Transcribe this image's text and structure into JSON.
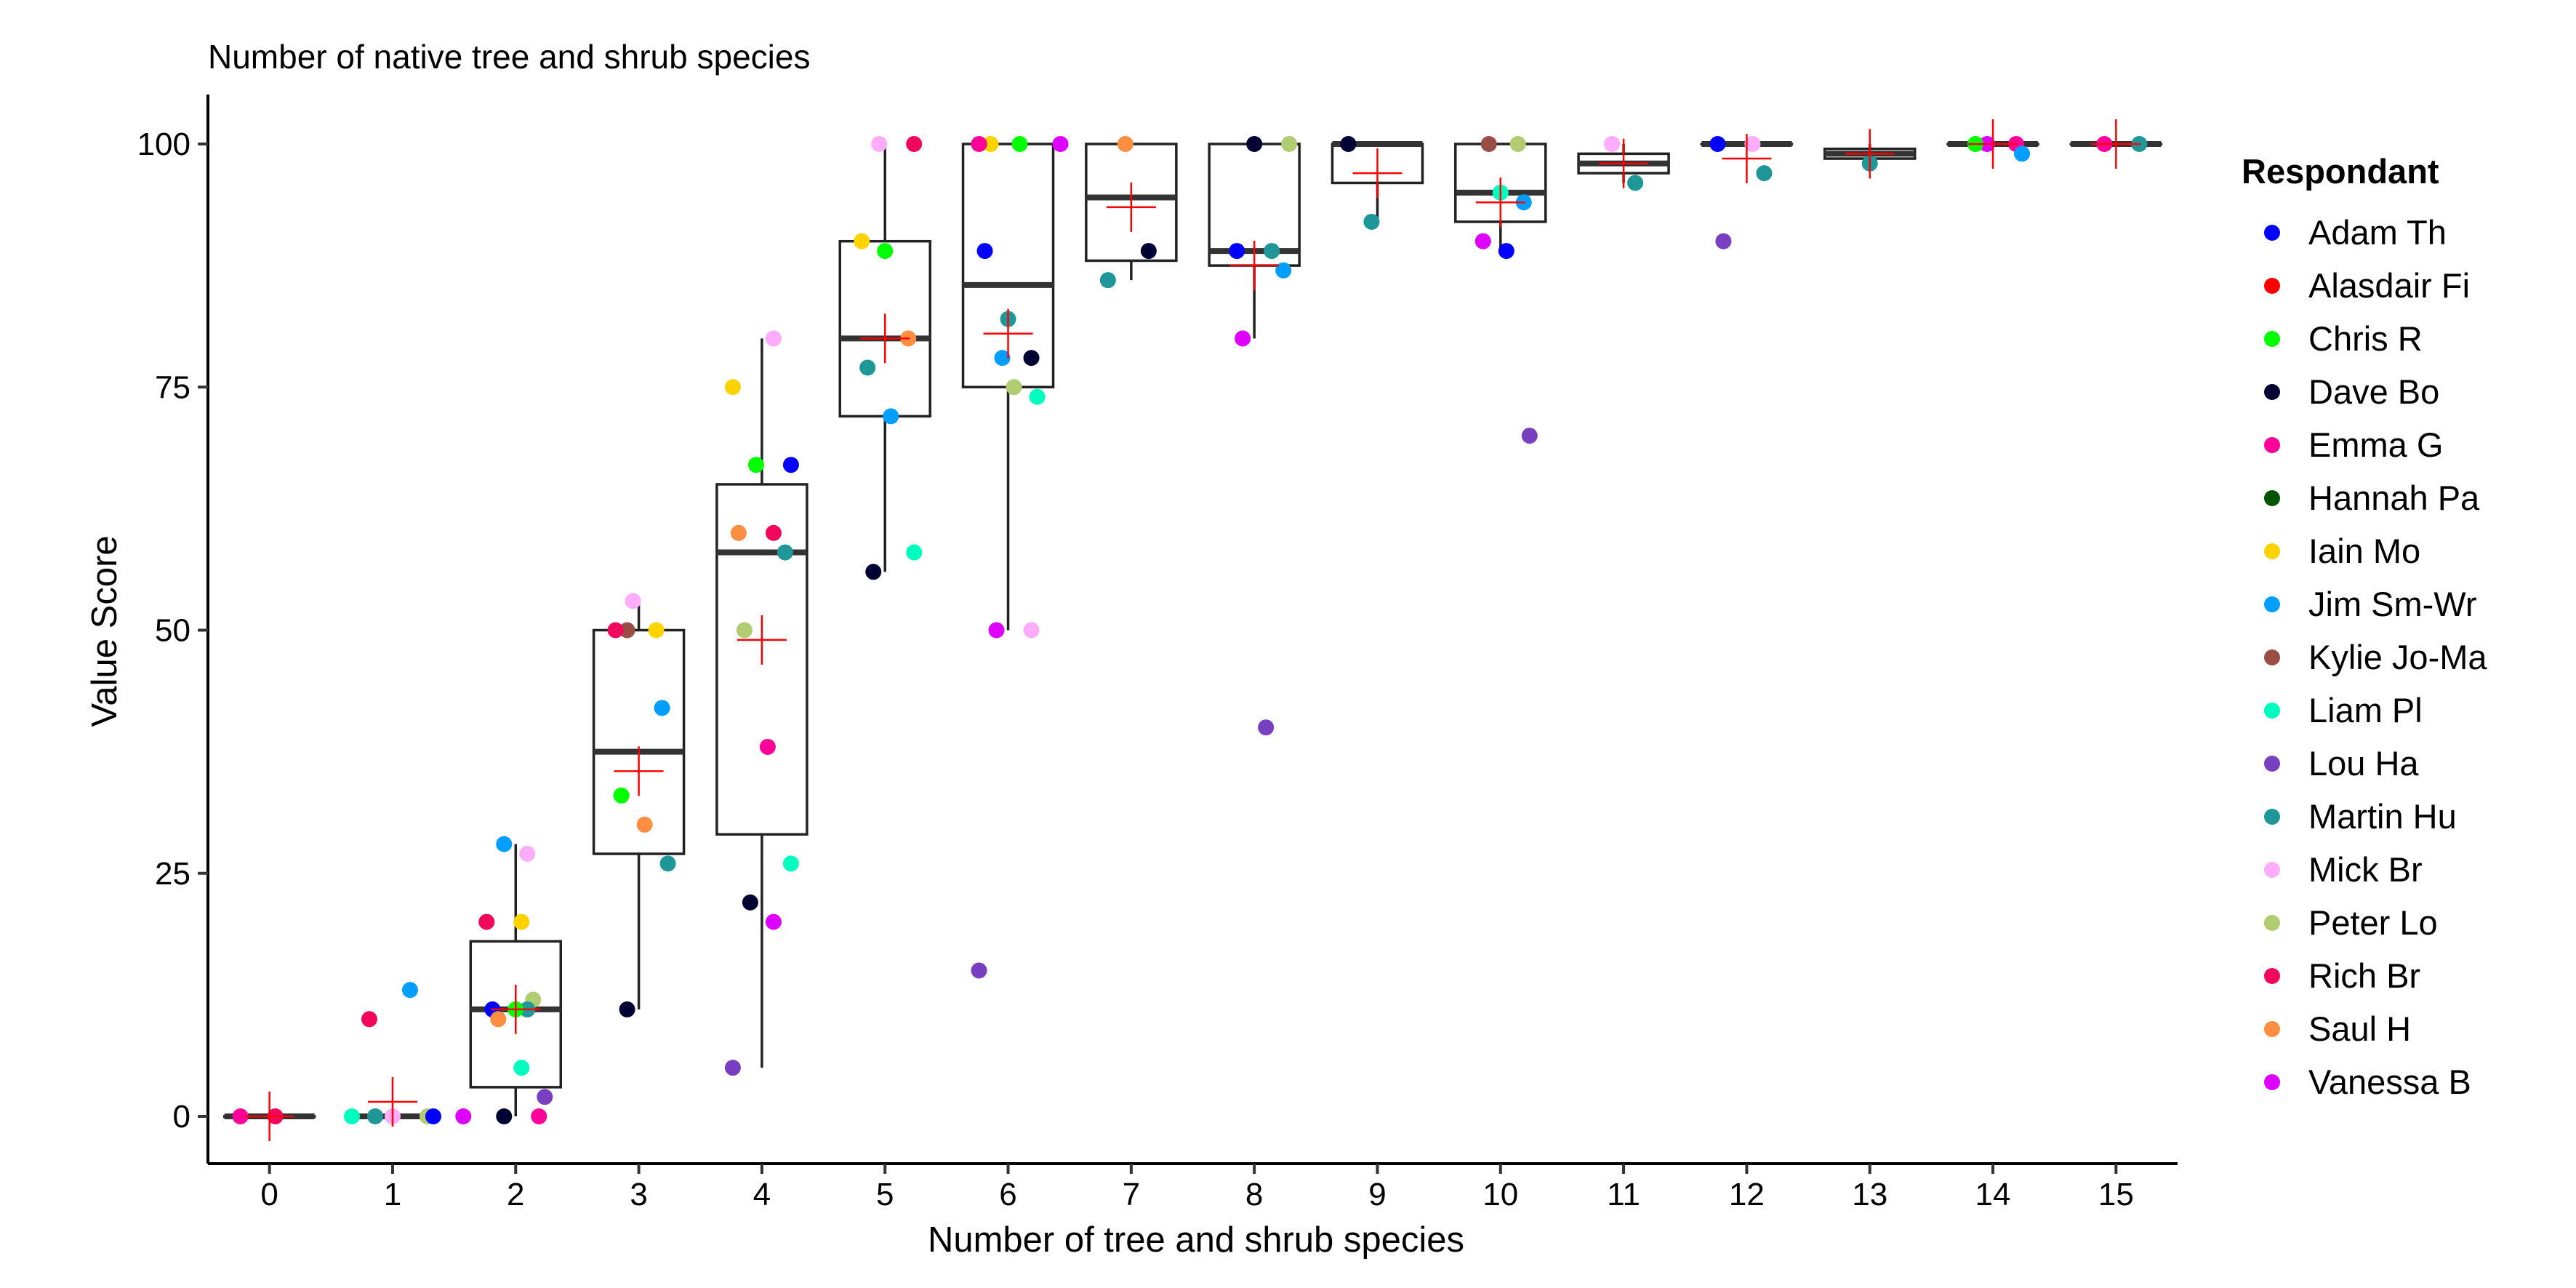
{
  "chart_data": {
    "type": "box",
    "title": "Number of native tree and shrub species",
    "xlabel": "Number of tree and shrub species",
    "ylabel": "Value Score",
    "x_categories": [
      "0",
      "1",
      "2",
      "3",
      "4",
      "5",
      "6",
      "7",
      "8",
      "9",
      "10",
      "11",
      "12",
      "13",
      "14",
      "15"
    ],
    "ylim": [
      -5,
      105
    ],
    "y_ticks": [
      0,
      25,
      50,
      75,
      100
    ],
    "grid": false,
    "legend": {
      "title": "Respondant",
      "position": "right",
      "entries": [
        {
          "name": "Adam Th",
          "color": "#0000FF"
        },
        {
          "name": "Alasdair Fi",
          "color": "#FF0000"
        },
        {
          "name": "Chris R",
          "color": "#00FF00"
        },
        {
          "name": "Dave Bo",
          "color": "#000033"
        },
        {
          "name": "Emma G",
          "color": "#FF0099"
        },
        {
          "name": "Hannah Pa",
          "color": "#005300"
        },
        {
          "name": "Iain Mo",
          "color": "#FFD300"
        },
        {
          "name": "Jim Sm-Wr",
          "color": "#009FFF"
        },
        {
          "name": "Kylie Jo-Ma",
          "color": "#9A4D42"
        },
        {
          "name": "Liam Pl",
          "color": "#00FFBE"
        },
        {
          "name": "Lou Ha",
          "color": "#783FC1"
        },
        {
          "name": "Martin Hu",
          "color": "#1F9698"
        },
        {
          "name": "Mick Br",
          "color": "#FFACFD"
        },
        {
          "name": "Peter Lo",
          "color": "#B1CC71"
        },
        {
          "name": "Rich Br",
          "color": "#F1085C"
        },
        {
          "name": "Saul H",
          "color": "#FE8F42"
        },
        {
          "name": "Vanessa B",
          "color": "#DD00FF"
        }
      ]
    },
    "boxes": [
      {
        "x": "0",
        "q1": 0,
        "median": 0,
        "q3": 0,
        "whisker_low": 0,
        "whisker_high": 0,
        "mean": 0
      },
      {
        "x": "1",
        "q1": 0,
        "median": 0,
        "q3": 0,
        "whisker_low": 0,
        "whisker_high": 0,
        "mean": 1.5
      },
      {
        "x": "2",
        "q1": 3,
        "median": 11,
        "q3": 18,
        "whisker_low": 0,
        "whisker_high": 28,
        "mean": 11
      },
      {
        "x": "3",
        "q1": 27,
        "median": 37.5,
        "q3": 50,
        "whisker_low": 11,
        "whisker_high": 53,
        "mean": 35.5
      },
      {
        "x": "4",
        "q1": 29,
        "median": 58,
        "q3": 65,
        "whisker_low": 5,
        "whisker_high": 80,
        "mean": 49
      },
      {
        "x": "5",
        "q1": 72,
        "median": 80,
        "q3": 90,
        "whisker_low": 56,
        "whisker_high": 100,
        "mean": 80
      },
      {
        "x": "6",
        "q1": 75,
        "median": 85.5,
        "q3": 100,
        "whisker_low": 50,
        "whisker_high": 100,
        "mean": 80.5
      },
      {
        "x": "7",
        "q1": 88,
        "median": 94.5,
        "q3": 100,
        "whisker_low": 86,
        "whisker_high": 100,
        "mean": 93.5
      },
      {
        "x": "8",
        "q1": 87.5,
        "median": 89,
        "q3": 100,
        "whisker_low": 80,
        "whisker_high": 100,
        "mean": 87.5
      },
      {
        "x": "9",
        "q1": 96,
        "median": 100,
        "q3": 100,
        "whisker_low": 92,
        "whisker_high": 100,
        "mean": 97
      },
      {
        "x": "10",
        "q1": 92,
        "median": 95,
        "q3": 100,
        "whisker_low": 89,
        "whisker_high": 100,
        "mean": 94
      },
      {
        "x": "11",
        "q1": 97,
        "median": 98,
        "q3": 99,
        "whisker_low": 96,
        "whisker_high": 100,
        "mean": 98
      },
      {
        "x": "12",
        "q1": 100,
        "median": 100,
        "q3": 100,
        "whisker_low": 100,
        "whisker_high": 100,
        "mean": 98.5
      },
      {
        "x": "13",
        "q1": 98.5,
        "median": 99,
        "q3": 99.5,
        "whisker_low": 98,
        "whisker_high": 100,
        "mean": 99
      },
      {
        "x": "14",
        "q1": 100,
        "median": 100,
        "q3": 100,
        "whisker_low": 100,
        "whisker_high": 100,
        "mean": 100
      },
      {
        "x": "15",
        "q1": 100,
        "median": 100,
        "q3": 100,
        "whisker_low": 100,
        "whisker_high": 100,
        "mean": 100
      }
    ],
    "points": [
      {
        "x": "0",
        "y": 0,
        "respondent": "Emma G"
      },
      {
        "x": "0",
        "y": 0,
        "respondent": "Rich Br"
      },
      {
        "x": "1",
        "y": 13,
        "respondent": "Jim Sm-Wr"
      },
      {
        "x": "1",
        "y": 10,
        "respondent": "Rich Br"
      },
      {
        "x": "1",
        "y": 0,
        "respondent": "Mick Br"
      },
      {
        "x": "1",
        "y": 0,
        "respondent": "Peter Lo"
      },
      {
        "x": "1",
        "y": 0,
        "respondent": "Liam Pl"
      },
      {
        "x": "1",
        "y": 0,
        "respondent": "Adam Th"
      },
      {
        "x": "1",
        "y": 0,
        "respondent": "Martin Hu"
      },
      {
        "x": "2",
        "y": 28,
        "respondent": "Jim Sm-Wr"
      },
      {
        "x": "2",
        "y": 27,
        "respondent": "Mick Br"
      },
      {
        "x": "2",
        "y": 20,
        "respondent": "Rich Br"
      },
      {
        "x": "2",
        "y": 20,
        "respondent": "Iain Mo"
      },
      {
        "x": "2",
        "y": 12,
        "respondent": "Peter Lo"
      },
      {
        "x": "2",
        "y": 11,
        "respondent": "Adam Th"
      },
      {
        "x": "2",
        "y": 11,
        "respondent": "Martin Hu"
      },
      {
        "x": "2",
        "y": 11,
        "respondent": "Chris R"
      },
      {
        "x": "2",
        "y": 10,
        "respondent": "Saul H"
      },
      {
        "x": "2",
        "y": 5,
        "respondent": "Liam Pl"
      },
      {
        "x": "2",
        "y": 2,
        "respondent": "Lou Ha"
      },
      {
        "x": "2",
        "y": 0,
        "respondent": "Dave Bo"
      },
      {
        "x": "2",
        "y": 0,
        "respondent": "Emma G"
      },
      {
        "x": "2",
        "y": 0,
        "respondent": "Vanessa B"
      },
      {
        "x": "3",
        "y": 53,
        "respondent": "Mick Br"
      },
      {
        "x": "3",
        "y": 50,
        "respondent": "Iain Mo"
      },
      {
        "x": "3",
        "y": 50,
        "respondent": "Kylie Jo-Ma"
      },
      {
        "x": "3",
        "y": 50,
        "respondent": "Rich Br"
      },
      {
        "x": "3",
        "y": 42,
        "respondent": "Jim Sm-Wr"
      },
      {
        "x": "3",
        "y": 33,
        "respondent": "Chris R"
      },
      {
        "x": "3",
        "y": 30,
        "respondent": "Saul H"
      },
      {
        "x": "3",
        "y": 26,
        "respondent": "Martin Hu"
      },
      {
        "x": "3",
        "y": 11,
        "respondent": "Dave Bo"
      },
      {
        "x": "4",
        "y": 80,
        "respondent": "Mick Br"
      },
      {
        "x": "4",
        "y": 75,
        "respondent": "Iain Mo"
      },
      {
        "x": "4",
        "y": 67,
        "respondent": "Chris R"
      },
      {
        "x": "4",
        "y": 67,
        "respondent": "Adam Th"
      },
      {
        "x": "4",
        "y": 60,
        "respondent": "Saul H"
      },
      {
        "x": "4",
        "y": 60,
        "respondent": "Rich Br"
      },
      {
        "x": "4",
        "y": 58,
        "respondent": "Martin Hu"
      },
      {
        "x": "4",
        "y": 50,
        "respondent": "Peter Lo"
      },
      {
        "x": "4",
        "y": 38,
        "respondent": "Emma G"
      },
      {
        "x": "4",
        "y": 26,
        "respondent": "Liam Pl"
      },
      {
        "x": "4",
        "y": 22,
        "respondent": "Dave Bo"
      },
      {
        "x": "4",
        "y": 20,
        "respondent": "Vanessa B"
      },
      {
        "x": "4",
        "y": 5,
        "respondent": "Lou Ha"
      },
      {
        "x": "5",
        "y": 100,
        "respondent": "Mick Br"
      },
      {
        "x": "5",
        "y": 100,
        "respondent": "Rich Br"
      },
      {
        "x": "5",
        "y": 90,
        "respondent": "Iain Mo"
      },
      {
        "x": "5",
        "y": 89,
        "respondent": "Chris R"
      },
      {
        "x": "5",
        "y": 80,
        "respondent": "Saul H"
      },
      {
        "x": "5",
        "y": 77,
        "respondent": "Martin Hu"
      },
      {
        "x": "5",
        "y": 72,
        "respondent": "Jim Sm-Wr"
      },
      {
        "x": "5",
        "y": 58,
        "respondent": "Liam Pl"
      },
      {
        "x": "5",
        "y": 56,
        "respondent": "Dave Bo"
      },
      {
        "x": "6",
        "y": 100,
        "respondent": "Chris R"
      },
      {
        "x": "6",
        "y": 100,
        "respondent": "Iain Mo"
      },
      {
        "x": "6",
        "y": 100,
        "respondent": "Emma G"
      },
      {
        "x": "6",
        "y": 100,
        "respondent": "Vanessa B"
      },
      {
        "x": "6",
        "y": 89,
        "respondent": "Adam Th"
      },
      {
        "x": "6",
        "y": 82,
        "respondent": "Martin Hu"
      },
      {
        "x": "6",
        "y": 78,
        "respondent": "Dave Bo"
      },
      {
        "x": "6",
        "y": 78,
        "respondent": "Jim Sm-Wr"
      },
      {
        "x": "6",
        "y": 75,
        "respondent": "Peter Lo"
      },
      {
        "x": "6",
        "y": 74,
        "respondent": "Liam Pl"
      },
      {
        "x": "6",
        "y": 50,
        "respondent": "Vanessa B"
      },
      {
        "x": "6",
        "y": 50,
        "respondent": "Mick Br"
      },
      {
        "x": "6",
        "y": 15,
        "respondent": "Lou Ha"
      },
      {
        "x": "7",
        "y": 100,
        "respondent": "Saul H"
      },
      {
        "x": "7",
        "y": 89,
        "respondent": "Dave Bo"
      },
      {
        "x": "7",
        "y": 86,
        "respondent": "Martin Hu"
      },
      {
        "x": "8",
        "y": 100,
        "respondent": "Dave Bo"
      },
      {
        "x": "8",
        "y": 100,
        "respondent": "Peter Lo"
      },
      {
        "x": "8",
        "y": 89,
        "respondent": "Adam Th"
      },
      {
        "x": "8",
        "y": 89,
        "respondent": "Martin Hu"
      },
      {
        "x": "8",
        "y": 87,
        "respondent": "Jim Sm-Wr"
      },
      {
        "x": "8",
        "y": 80,
        "respondent": "Vanessa B"
      },
      {
        "x": "8",
        "y": 40,
        "respondent": "Lou Ha"
      },
      {
        "x": "9",
        "y": 100,
        "respondent": "Dave Bo"
      },
      {
        "x": "9",
        "y": 92,
        "respondent": "Martin Hu"
      },
      {
        "x": "10",
        "y": 100,
        "respondent": "Peter Lo"
      },
      {
        "x": "10",
        "y": 100,
        "respondent": "Kylie Jo-Ma"
      },
      {
        "x": "10",
        "y": 95,
        "respondent": "Liam Pl"
      },
      {
        "x": "10",
        "y": 94,
        "respondent": "Jim Sm-Wr"
      },
      {
        "x": "10",
        "y": 90,
        "respondent": "Vanessa B"
      },
      {
        "x": "10",
        "y": 89,
        "respondent": "Adam Th"
      },
      {
        "x": "10",
        "y": 70,
        "respondent": "Lou Ha"
      },
      {
        "x": "11",
        "y": 100,
        "respondent": "Mick Br"
      },
      {
        "x": "11",
        "y": 96,
        "respondent": "Martin Hu"
      },
      {
        "x": "12",
        "y": 100,
        "respondent": "Adam Th"
      },
      {
        "x": "12",
        "y": 100,
        "respondent": "Mick Br"
      },
      {
        "x": "12",
        "y": 97,
        "respondent": "Martin Hu"
      },
      {
        "x": "12",
        "y": 90,
        "respondent": "Lou Ha"
      },
      {
        "x": "13",
        "y": 98,
        "respondent": "Martin Hu"
      },
      {
        "x": "14",
        "y": 100,
        "respondent": "Emma G"
      },
      {
        "x": "14",
        "y": 100,
        "respondent": "Vanessa B"
      },
      {
        "x": "14",
        "y": 100,
        "respondent": "Chris R"
      },
      {
        "x": "14",
        "y": 99,
        "respondent": "Jim Sm-Wr"
      },
      {
        "x": "15",
        "y": 100,
        "respondent": "Emma G"
      },
      {
        "x": "15",
        "y": 100,
        "respondent": "Martin Hu"
      }
    ]
  }
}
